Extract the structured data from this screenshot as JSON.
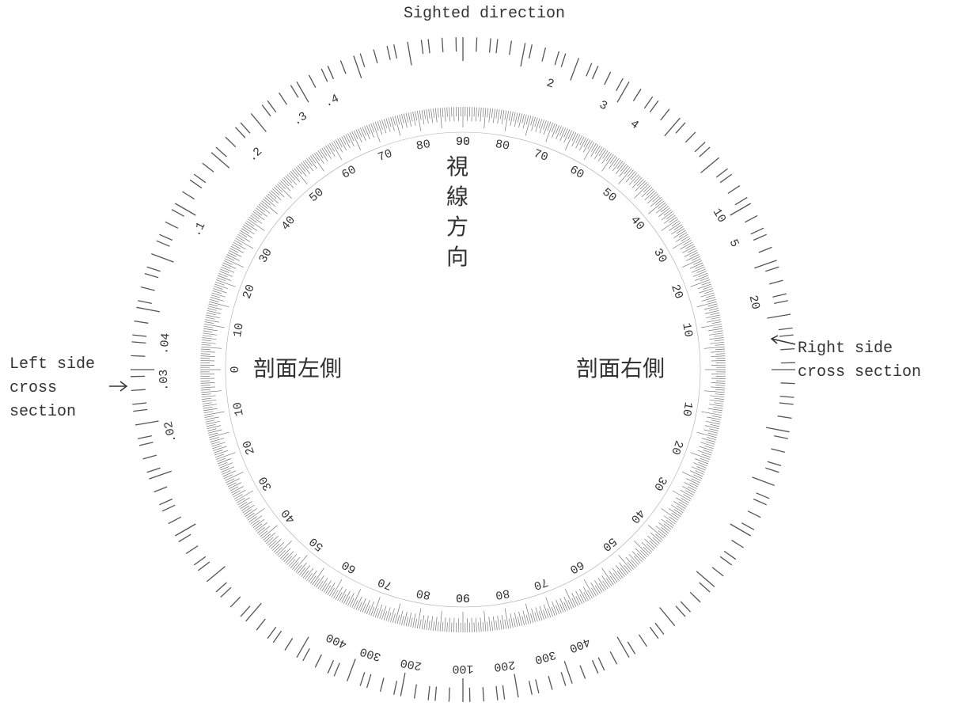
{
  "title": "Sighted direction",
  "left_label": [
    "Left side",
    "cross",
    "section"
  ],
  "right_label": [
    "Right side",
    "cross section"
  ],
  "center_vertical": [
    "視",
    "線",
    "方",
    "向"
  ],
  "left_inner": "剖面左側",
  "right_inner": "剖面右側",
  "inner_scale": [
    "0",
    "10",
    "20",
    "30",
    "40",
    "50",
    "60",
    "70",
    "80",
    "90"
  ],
  "outer_scale": [
    ".02",
    ".03",
    ".04",
    ".1",
    ".2",
    ".3",
    ".4",
    "2",
    "3",
    "4",
    "10",
    "5",
    "20",
    "400",
    "300",
    "200",
    "100",
    "200",
    "300",
    "400"
  ]
}
